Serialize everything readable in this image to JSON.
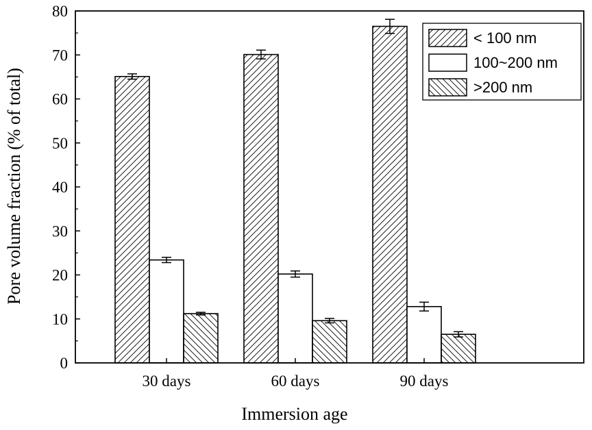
{
  "chart_data": {
    "type": "bar",
    "title": "",
    "xlabel": "Immersion age",
    "ylabel": "Pore volume fraction (% of total)",
    "ylim": [
      0,
      80
    ],
    "yticks": [
      0,
      10,
      20,
      30,
      40,
      50,
      60,
      70,
      80
    ],
    "categories": [
      "30 days",
      "60 days",
      "90 days"
    ],
    "series": [
      {
        "name": "< 100 nm",
        "pattern": "hatch-forward",
        "values": [
          65.1,
          70.1,
          76.5
        ],
        "errors": [
          0.6,
          1.0,
          1.6
        ]
      },
      {
        "name": "100~200 nm",
        "pattern": "none",
        "values": [
          23.4,
          20.2,
          12.8
        ],
        "errors": [
          0.6,
          0.7,
          1.0
        ]
      },
      {
        "name": ">200 nm",
        "pattern": "hatch-backward",
        "values": [
          11.2,
          9.6,
          6.5
        ],
        "errors": [
          0.3,
          0.5,
          0.6
        ]
      }
    ],
    "legend_position": "top-right",
    "grid": false
  }
}
